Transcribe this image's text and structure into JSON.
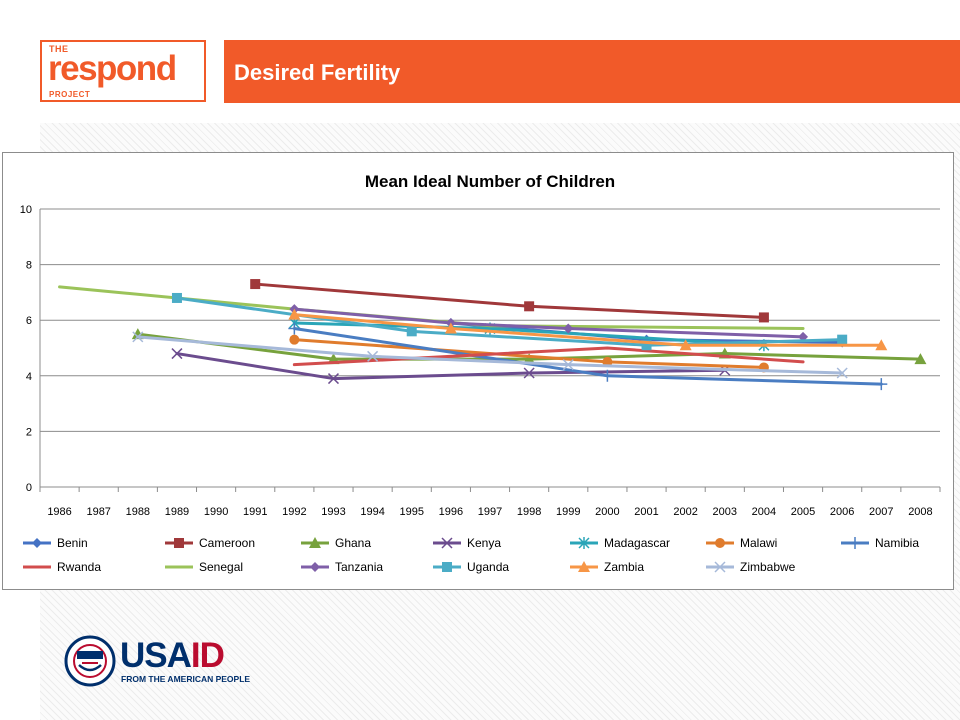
{
  "header": {
    "logo": {
      "top": "THE",
      "word": "respond",
      "bottom": "PROJECT"
    },
    "banner_title": "Desired Fertility"
  },
  "colors": {
    "accent": "#f15a29",
    "usaid_blue": "#002f6c",
    "usaid_red": "#ba0c2f"
  },
  "chart_data": {
    "type": "line",
    "title": "Mean Ideal Number of Children",
    "xlabel": "",
    "ylabel": "",
    "categories": [
      "1986",
      "1987",
      "1988",
      "1989",
      "1990",
      "1991",
      "1992",
      "1993",
      "1994",
      "1995",
      "1996",
      "1997",
      "1998",
      "1999",
      "2000",
      "2001",
      "2002",
      "2003",
      "2004",
      "2005",
      "2006",
      "2007",
      "2008"
    ],
    "ylim": [
      0,
      10
    ],
    "yticks": [
      0,
      2,
      4,
      6,
      8,
      10
    ],
    "grid": true,
    "legend": "bottom",
    "series": [
      {
        "name": "Benin",
        "color": "#4472c4",
        "marker": "diamond",
        "points": [
          [
            1996,
            5.9
          ],
          [
            2001,
            5.3
          ],
          [
            2006,
            5.2
          ]
        ]
      },
      {
        "name": "Cameroon",
        "color": "#a0383a",
        "marker": "square",
        "points": [
          [
            1991,
            7.3
          ],
          [
            1998,
            6.5
          ],
          [
            2004,
            6.1
          ]
        ]
      },
      {
        "name": "Ghana",
        "color": "#77a23d",
        "marker": "triangle",
        "points": [
          [
            1988,
            5.5
          ],
          [
            1993,
            4.6
          ],
          [
            1998,
            4.6
          ],
          [
            2003,
            4.8
          ],
          [
            2008,
            4.6
          ]
        ]
      },
      {
        "name": "Kenya",
        "color": "#6b4c8e",
        "marker": "x",
        "points": [
          [
            1989,
            4.8
          ],
          [
            1993,
            3.9
          ],
          [
            1998,
            4.1
          ],
          [
            2003,
            4.2
          ]
        ]
      },
      {
        "name": "Madagascar",
        "color": "#2aa5b8",
        "marker": "star",
        "points": [
          [
            1992,
            5.9
          ],
          [
            1997,
            5.7
          ],
          [
            2004,
            5.1
          ]
        ]
      },
      {
        "name": "Malawi",
        "color": "#e07c2d",
        "marker": "circle",
        "points": [
          [
            1992,
            5.3
          ],
          [
            2000,
            4.5
          ],
          [
            2004,
            4.3
          ]
        ]
      },
      {
        "name": "Namibia",
        "color": "#4a7dc2",
        "marker": "plus",
        "points": [
          [
            1992,
            5.7
          ],
          [
            2000,
            4.0
          ],
          [
            2007,
            3.7
          ]
        ]
      },
      {
        "name": "Rwanda",
        "color": "#d24d4d",
        "marker": "none",
        "points": [
          [
            1992,
            4.4
          ],
          [
            2000,
            5.0
          ],
          [
            2005,
            4.5
          ]
        ]
      },
      {
        "name": "Senegal",
        "color": "#9bc35a",
        "marker": "none",
        "points": [
          [
            1986,
            7.2
          ],
          [
            1992,
            6.4
          ],
          [
            1997,
            5.8
          ],
          [
            2005,
            5.7
          ]
        ]
      },
      {
        "name": "Tanzania",
        "color": "#7f5fa8",
        "marker": "diamond",
        "points": [
          [
            1992,
            6.4
          ],
          [
            1996,
            5.9
          ],
          [
            1999,
            5.7
          ],
          [
            2005,
            5.4
          ]
        ]
      },
      {
        "name": "Uganda",
        "color": "#4bacc6",
        "marker": "square",
        "points": [
          [
            1989,
            6.8
          ],
          [
            1995,
            5.6
          ],
          [
            2001,
            5.1
          ],
          [
            2006,
            5.3
          ]
        ]
      },
      {
        "name": "Zambia",
        "color": "#f79646",
        "marker": "triangle",
        "points": [
          [
            1992,
            6.2
          ],
          [
            1996,
            5.7
          ],
          [
            2002,
            5.1
          ],
          [
            2007,
            5.1
          ]
        ]
      },
      {
        "name": "Zimbabwe",
        "color": "#a6b9d9",
        "marker": "x",
        "points": [
          [
            1988,
            5.4
          ],
          [
            1994,
            4.7
          ],
          [
            1999,
            4.4
          ],
          [
            2006,
            4.1
          ]
        ]
      }
    ]
  },
  "footer": {
    "usaid_word_1": "USA",
    "usaid_word_2": "ID",
    "usaid_tagline": "FROM THE AMERICAN PEOPLE"
  }
}
